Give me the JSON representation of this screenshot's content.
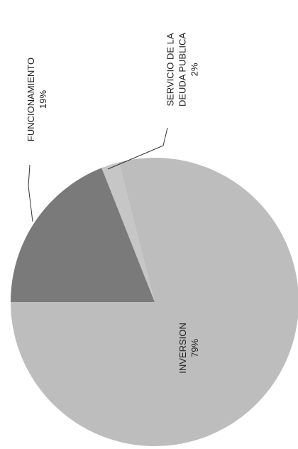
{
  "chart_data": {
    "type": "pie",
    "categories": [
      "FUNCIONAMIENTO",
      "SERVICIO DE LA DEUDA PUBLICA",
      "INVERSION"
    ],
    "values": [
      19,
      2,
      79
    ],
    "value_labels": [
      "19%",
      "2%",
      "79%"
    ],
    "colors": [
      "#7a7a7a",
      "#c6c6c6",
      "#bdbdbd"
    ]
  }
}
